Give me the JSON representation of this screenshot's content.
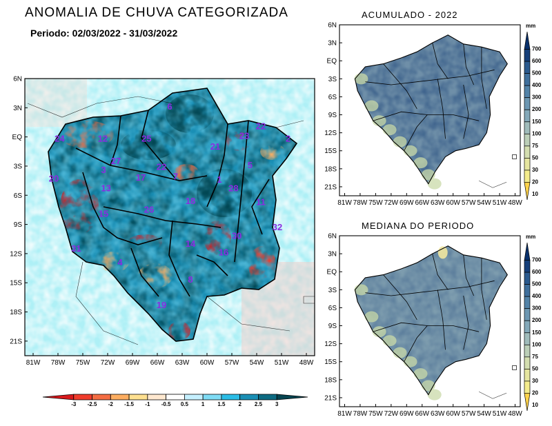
{
  "title": "ANOMALIA DE CHUVA CATEGORIZADA",
  "period": "Periodo: 02/03/2022 - 31/03/2022",
  "main_map": {
    "lat_ticks": [
      "6N",
      "3N",
      "EQ",
      "3S",
      "6S",
      "9S",
      "12S",
      "15S",
      "18S",
      "21S"
    ],
    "lon_ticks": [
      "81W",
      "78W",
      "75W",
      "72W",
      "69W",
      "66W",
      "63W",
      "60W",
      "57W",
      "54W",
      "51W",
      "48W"
    ],
    "regions": [
      {
        "label": "6",
        "lon": -64.5,
        "lat": 2.8
      },
      {
        "label": "22",
        "lon": -53.5,
        "lat": 0.8
      },
      {
        "label": "24",
        "lon": -77.8,
        "lat": -0.5
      },
      {
        "label": "12",
        "lon": -72.6,
        "lat": -0.5
      },
      {
        "label": "25",
        "lon": -67.3,
        "lat": -0.5
      },
      {
        "label": "23",
        "lon": -55.5,
        "lat": -0.2
      },
      {
        "label": "2",
        "lon": -50.2,
        "lat": -0.5
      },
      {
        "label": "21",
        "lon": -59.0,
        "lat": -1.3
      },
      {
        "label": "27",
        "lon": -71.0,
        "lat": -2.8
      },
      {
        "label": "3",
        "lon": -72.5,
        "lat": -3.7
      },
      {
        "label": "22",
        "lon": -65.5,
        "lat": -3.4
      },
      {
        "label": "5",
        "lon": -54.8,
        "lat": -3.2
      },
      {
        "label": "20",
        "lon": -78.5,
        "lat": -4.6
      },
      {
        "label": "17",
        "lon": -68.0,
        "lat": -4.5
      },
      {
        "label": "7",
        "lon": -63.8,
        "lat": -4.4
      },
      {
        "label": "1",
        "lon": -58.5,
        "lat": -4.7
      },
      {
        "label": "13",
        "lon": -72.2,
        "lat": -5.6
      },
      {
        "label": "28",
        "lon": -56.8,
        "lat": -5.6
      },
      {
        "label": "18",
        "lon": -62.0,
        "lat": -6.9
      },
      {
        "label": "11",
        "lon": -53.5,
        "lat": -7.0
      },
      {
        "label": "15",
        "lon": -72.5,
        "lat": -8.2
      },
      {
        "label": "26",
        "lon": -67.0,
        "lat": -7.8
      },
      {
        "label": "32",
        "lon": -51.5,
        "lat": -9.6
      },
      {
        "label": "30",
        "lon": -56.4,
        "lat": -10.5
      },
      {
        "label": "31",
        "lon": -75.8,
        "lat": -11.8
      },
      {
        "label": "14",
        "lon": -62.0,
        "lat": -11.3
      },
      {
        "label": "16",
        "lon": -58.0,
        "lat": -12.2
      },
      {
        "label": "4",
        "lon": -70.5,
        "lat": -13.2
      },
      {
        "label": "8",
        "lon": -62.0,
        "lat": -15.0
      },
      {
        "label": "19",
        "lon": -65.5,
        "lat": -17.6
      }
    ]
  },
  "colorbar": {
    "labels": [
      "-3",
      "-2.5",
      "-2",
      "-1.5",
      "-1",
      "-0.5",
      "0.5",
      "1",
      "1.5",
      "2",
      "2.5",
      "3"
    ],
    "colors": [
      "#d7191c",
      "#f03c2c",
      "#f46d43",
      "#fdae61",
      "#fee090",
      "#ffe8d0",
      "#ffffff",
      "#c6f0ff",
      "#7fdcf5",
      "#2bbde6",
      "#1a8fb5",
      "#0d6b82",
      "#064450"
    ]
  },
  "acum_map": {
    "title": "ACUMULADO - 2022",
    "lat_ticks": [
      "6N",
      "3N",
      "EQ",
      "3S",
      "6S",
      "9S",
      "12S",
      "15S",
      "18S",
      "21S"
    ],
    "lon_ticks": [
      "81W",
      "78W",
      "75W",
      "72W",
      "69W",
      "66W",
      "63W",
      "60W",
      "57W",
      "54W",
      "51W",
      "48W"
    ]
  },
  "median_map": {
    "title": "MEDIANA DO PERIODO",
    "lat_ticks": [
      "6N",
      "3N",
      "EQ",
      "3S",
      "6S",
      "9S",
      "12S",
      "15S",
      "18S",
      "21S"
    ],
    "lon_ticks": [
      "81W",
      "78W",
      "75W",
      "72W",
      "69W",
      "66W",
      "63W",
      "60W",
      "57W",
      "54W",
      "51W",
      "48W"
    ]
  },
  "mm_colorbar": {
    "unit": "mm",
    "labels": [
      "700",
      "600",
      "500",
      "400",
      "300",
      "200",
      "150",
      "100",
      "75",
      "50",
      "30",
      "20",
      "10"
    ],
    "colors": [
      "#08306b",
      "#163f7a",
      "#2b5a8e",
      "#3f6f9c",
      "#5383a8",
      "#6c97b2",
      "#84a9b9",
      "#a0bcbb",
      "#bccfb8",
      "#d4deb0",
      "#e6e6a0",
      "#f4ec8c",
      "#ffd34a"
    ]
  }
}
